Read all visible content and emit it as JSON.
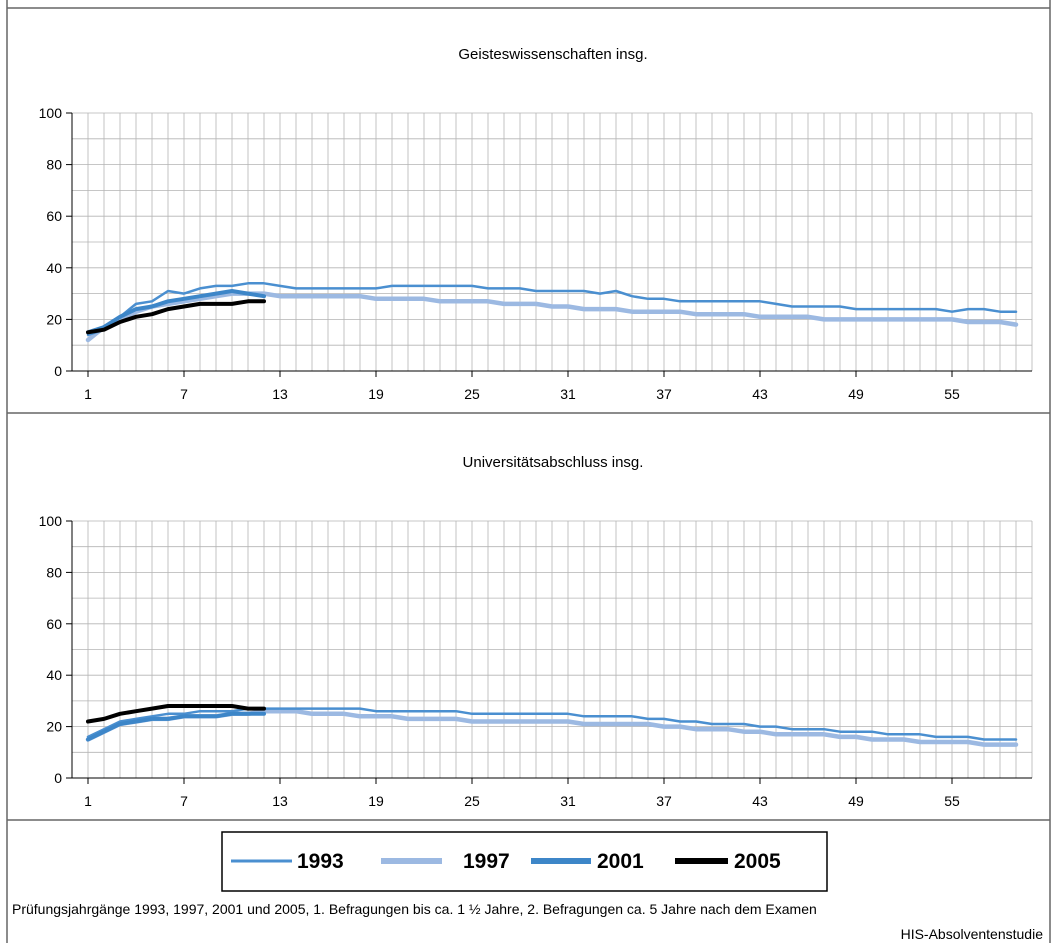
{
  "chart_data": [
    {
      "type": "line",
      "title": "Geisteswissenschaften insg.",
      "xlabel": "",
      "ylabel": "",
      "ylim": [
        0,
        100
      ],
      "yticks": [
        "0",
        "20",
        "40",
        "60",
        "80",
        "100"
      ],
      "xticks": [
        "1",
        "7",
        "13",
        "19",
        "25",
        "31",
        "37",
        "43",
        "49",
        "55"
      ],
      "grid": true,
      "series": [
        {
          "name": "1993",
          "x": [
            1,
            2,
            3,
            4,
            5,
            6,
            7,
            8,
            9,
            10,
            11,
            12,
            13,
            14,
            15,
            16,
            17,
            18,
            19,
            20,
            21,
            22,
            23,
            24,
            25,
            26,
            27,
            28,
            29,
            30,
            31,
            32,
            33,
            34,
            35,
            36,
            37,
            38,
            39,
            40,
            41,
            42,
            43,
            44,
            45,
            46,
            47,
            48,
            49,
            50,
            51,
            52,
            53,
            54,
            55,
            56,
            57,
            58,
            59
          ],
          "values": [
            14,
            16,
            21,
            26,
            27,
            31,
            30,
            32,
            33,
            33,
            34,
            34,
            33,
            32,
            32,
            32,
            32,
            32,
            32,
            33,
            33,
            33,
            33,
            33,
            33,
            32,
            32,
            32,
            31,
            31,
            31,
            31,
            30,
            31,
            29,
            28,
            28,
            27,
            27,
            27,
            27,
            27,
            27,
            26,
            25,
            25,
            25,
            25,
            24,
            24,
            24,
            24,
            24,
            24,
            23,
            24,
            24,
            23,
            23
          ]
        },
        {
          "name": "1997",
          "x": [
            1,
            2,
            3,
            4,
            5,
            6,
            7,
            8,
            9,
            10,
            11,
            12,
            13,
            14,
            15,
            16,
            17,
            18,
            19,
            20,
            21,
            22,
            23,
            24,
            25,
            26,
            27,
            28,
            29,
            30,
            31,
            32,
            33,
            34,
            35,
            36,
            37,
            38,
            39,
            40,
            41,
            42,
            43,
            44,
            45,
            46,
            47,
            48,
            49,
            50,
            51,
            52,
            53,
            54,
            55,
            56,
            57,
            58,
            59
          ],
          "values": [
            12,
            17,
            20,
            23,
            25,
            26,
            27,
            28,
            29,
            30,
            30,
            30,
            29,
            29,
            29,
            29,
            29,
            29,
            28,
            28,
            28,
            28,
            27,
            27,
            27,
            27,
            26,
            26,
            26,
            25,
            25,
            24,
            24,
            24,
            23,
            23,
            23,
            23,
            22,
            22,
            22,
            22,
            21,
            21,
            21,
            21,
            20,
            20,
            20,
            20,
            20,
            20,
            20,
            20,
            20,
            19,
            19,
            19,
            18
          ]
        },
        {
          "name": "2001",
          "x": [
            1,
            2,
            3,
            4,
            5,
            6,
            7,
            8,
            9,
            10,
            11,
            12
          ],
          "values": [
            15,
            17,
            21,
            24,
            25,
            27,
            28,
            29,
            30,
            31,
            30,
            29
          ]
        },
        {
          "name": "2005",
          "x": [
            1,
            2,
            3,
            4,
            5,
            6,
            7,
            8,
            9,
            10,
            11,
            12
          ],
          "values": [
            15,
            16,
            19,
            21,
            22,
            24,
            25,
            26,
            26,
            26,
            27,
            27
          ]
        }
      ]
    },
    {
      "type": "line",
      "title": "Universitätsabschluss insg.",
      "xlabel": "",
      "ylabel": "",
      "ylim": [
        0,
        100
      ],
      "yticks": [
        "0",
        "20",
        "40",
        "60",
        "80",
        "100"
      ],
      "xticks": [
        "1",
        "7",
        "13",
        "19",
        "25",
        "31",
        "37",
        "43",
        "49",
        "55"
      ],
      "grid": true,
      "series": [
        {
          "name": "1993",
          "x": [
            1,
            2,
            3,
            4,
            5,
            6,
            7,
            8,
            9,
            10,
            11,
            12,
            13,
            14,
            15,
            16,
            17,
            18,
            19,
            20,
            21,
            22,
            23,
            24,
            25,
            26,
            27,
            28,
            29,
            30,
            31,
            32,
            33,
            34,
            35,
            36,
            37,
            38,
            39,
            40,
            41,
            42,
            43,
            44,
            45,
            46,
            47,
            48,
            49,
            50,
            51,
            52,
            53,
            54,
            55,
            56,
            57,
            58,
            59
          ],
          "values": [
            16,
            19,
            22,
            23,
            24,
            25,
            25,
            26,
            26,
            26,
            27,
            27,
            27,
            27,
            27,
            27,
            27,
            27,
            26,
            26,
            26,
            26,
            26,
            26,
            25,
            25,
            25,
            25,
            25,
            25,
            25,
            24,
            24,
            24,
            24,
            23,
            23,
            22,
            22,
            21,
            21,
            21,
            20,
            20,
            19,
            19,
            19,
            18,
            18,
            18,
            17,
            17,
            17,
            16,
            16,
            16,
            15,
            15,
            15
          ]
        },
        {
          "name": "1997",
          "x": [
            1,
            2,
            3,
            4,
            5,
            6,
            7,
            8,
            9,
            10,
            11,
            12,
            13,
            14,
            15,
            16,
            17,
            18,
            19,
            20,
            21,
            22,
            23,
            24,
            25,
            26,
            27,
            28,
            29,
            30,
            31,
            32,
            33,
            34,
            35,
            36,
            37,
            38,
            39,
            40,
            41,
            42,
            43,
            44,
            45,
            46,
            47,
            48,
            49,
            50,
            51,
            52,
            53,
            54,
            55,
            56,
            57,
            58,
            59
          ],
          "values": [
            15,
            18,
            21,
            22,
            23,
            23,
            24,
            24,
            24,
            25,
            25,
            26,
            26,
            26,
            25,
            25,
            25,
            24,
            24,
            24,
            23,
            23,
            23,
            23,
            22,
            22,
            22,
            22,
            22,
            22,
            22,
            21,
            21,
            21,
            21,
            21,
            20,
            20,
            19,
            19,
            19,
            18,
            18,
            17,
            17,
            17,
            17,
            16,
            16,
            15,
            15,
            15,
            14,
            14,
            14,
            14,
            13,
            13,
            13
          ]
        },
        {
          "name": "2001",
          "x": [
            1,
            2,
            3,
            4,
            5,
            6,
            7,
            8,
            9,
            10,
            11,
            12
          ],
          "values": [
            15,
            18,
            21,
            22,
            23,
            23,
            24,
            24,
            24,
            25,
            25,
            25
          ]
        },
        {
          "name": "2005",
          "x": [
            1,
            2,
            3,
            4,
            5,
            6,
            7,
            8,
            9,
            10,
            11,
            12
          ],
          "values": [
            22,
            23,
            25,
            26,
            27,
            28,
            28,
            28,
            28,
            28,
            27,
            27
          ]
        }
      ]
    }
  ],
  "legend": {
    "items": [
      {
        "label": "1993",
        "color": "#4a8fd0"
      },
      {
        "label": "1997",
        "color": "#9cb9e2"
      },
      {
        "label": "2001",
        "color": "#3d86c8"
      },
      {
        "label": "2005",
        "color": "#000000"
      }
    ]
  },
  "footnote": "Prüfungsjahrgänge 1993, 1997, 2001 und 2005, 1. Befragungen bis ca. 1 ½ Jahre, 2. Befragungen ca. 5 Jahre nach dem Examen",
  "source": "HIS-Absolventenstudie"
}
